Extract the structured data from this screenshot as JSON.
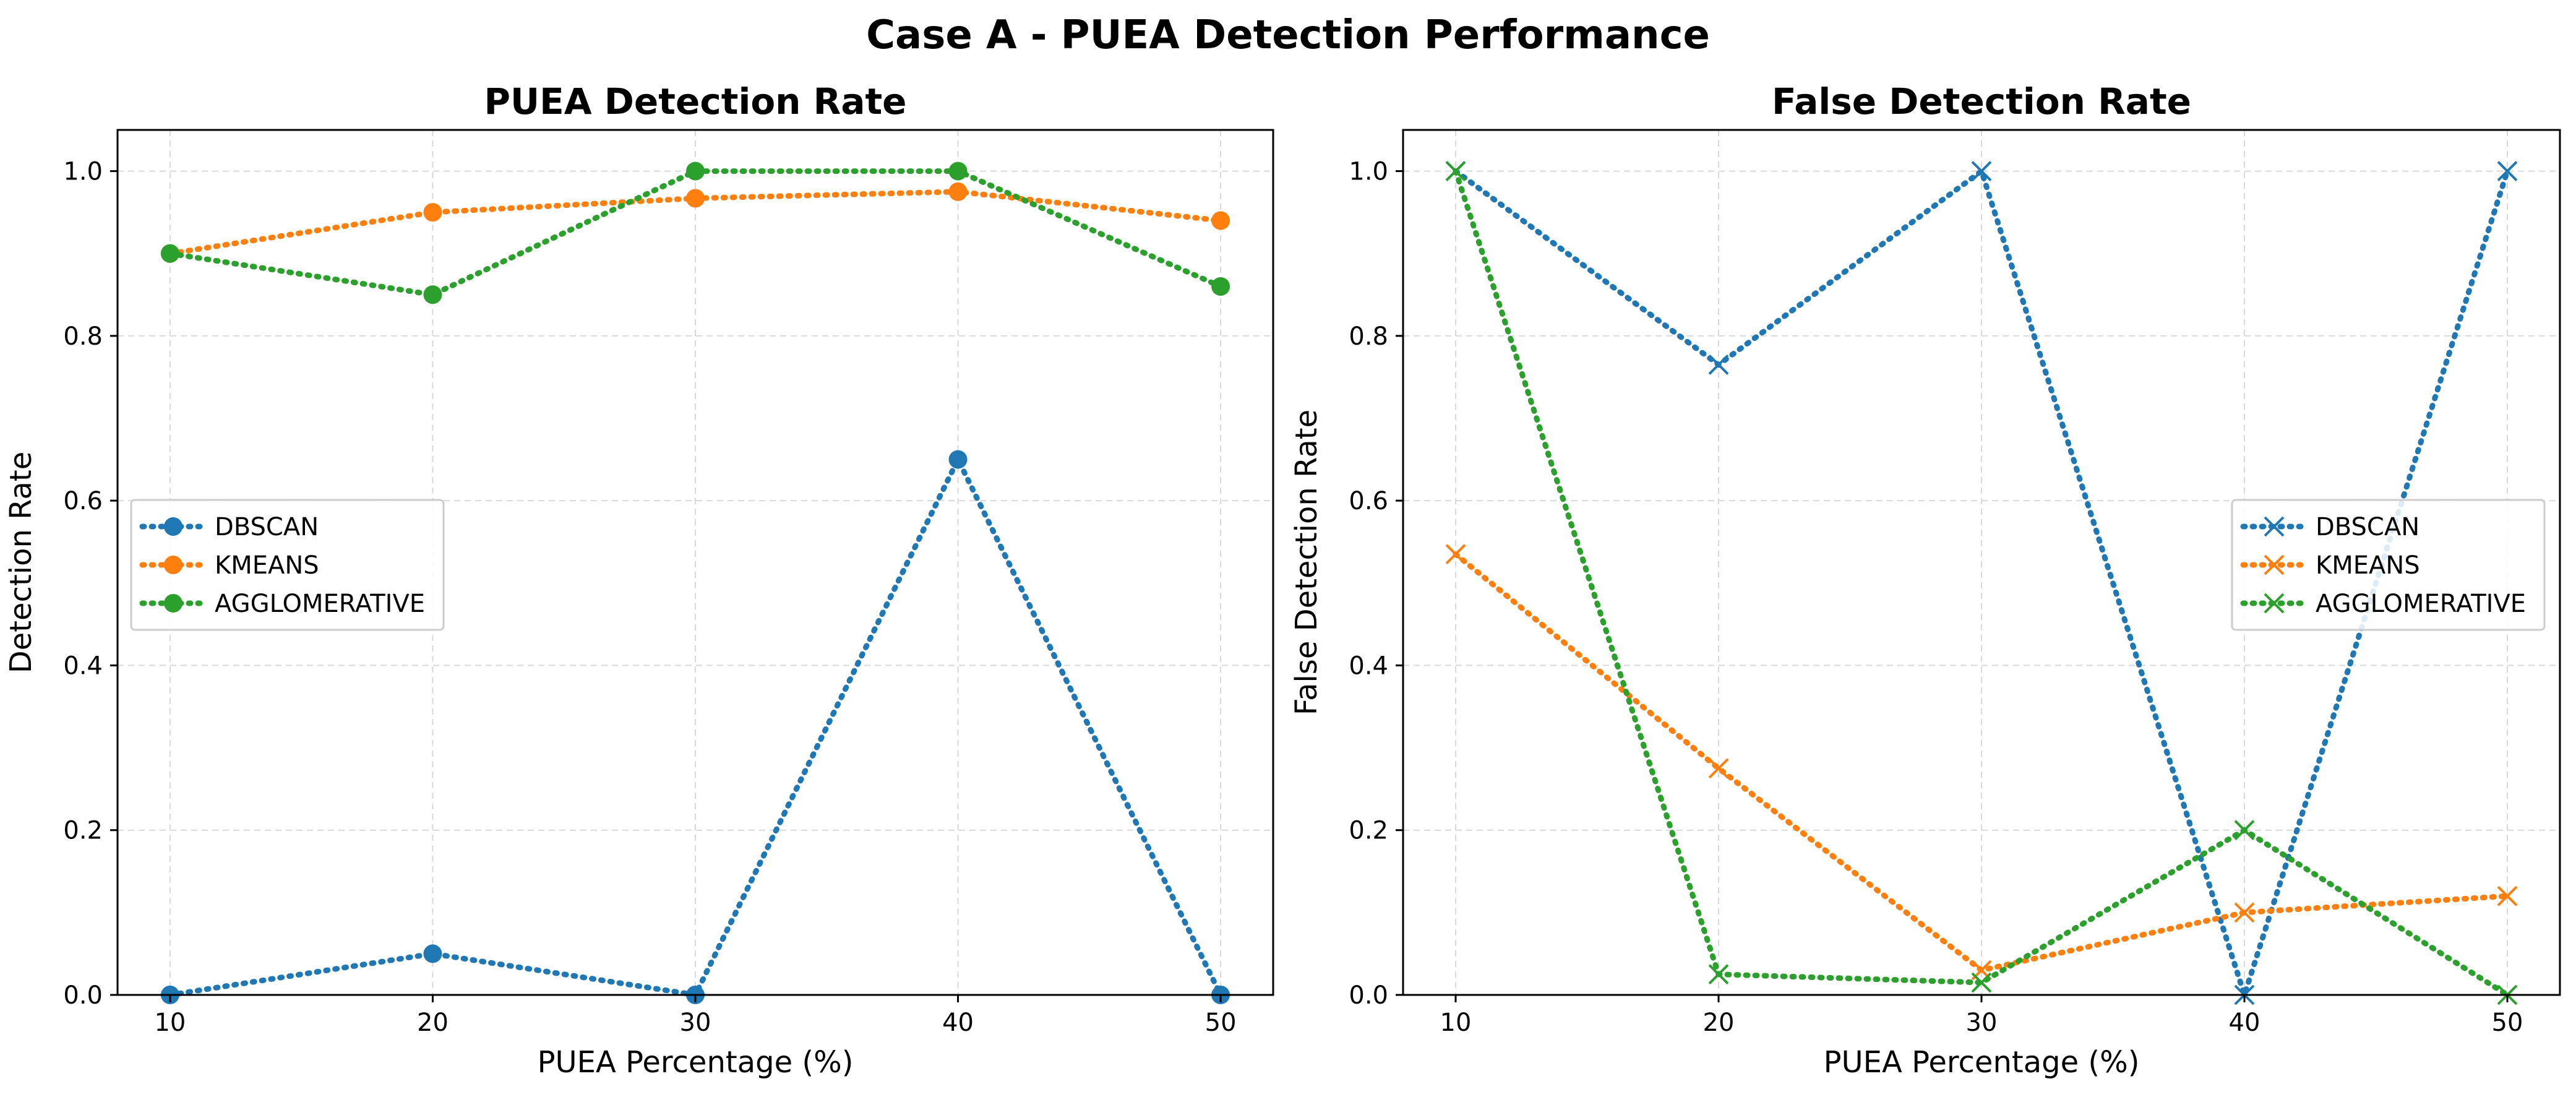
{
  "figure_title": "Case A - PUEA Detection Performance",
  "colors": {
    "DBSCAN": "#1f77b4",
    "KMEANS": "#ff7f0e",
    "AGGLOMERATIVE": "#2ca02c",
    "grid": "#d9d9d9"
  },
  "chart_data": [
    {
      "type": "line",
      "title": "PUEA Detection Rate",
      "xlabel": "PUEA Percentage (%)",
      "ylabel": "Detection Rate",
      "x": [
        10,
        20,
        30,
        40,
        50
      ],
      "xticks": [
        "10",
        "20",
        "30",
        "40",
        "50"
      ],
      "yticks": [
        "0.0",
        "0.2",
        "0.4",
        "0.6",
        "0.8",
        "1.0"
      ],
      "xlim": [
        8,
        52
      ],
      "ylim": [
        0,
        1.05
      ],
      "grid": true,
      "linestyle": "dotted",
      "marker": "circle",
      "legend_position": "center-left",
      "series": [
        {
          "name": "DBSCAN",
          "color": "#1f77b4",
          "values": [
            0.0,
            0.05,
            0.0,
            0.65,
            0.0
          ]
        },
        {
          "name": "KMEANS",
          "color": "#ff7f0e",
          "values": [
            0.9,
            0.95,
            0.967,
            0.975,
            0.94
          ]
        },
        {
          "name": "AGGLOMERATIVE",
          "color": "#2ca02c",
          "values": [
            0.9,
            0.85,
            1.0,
            1.0,
            0.86
          ]
        }
      ]
    },
    {
      "type": "line",
      "title": "False Detection Rate",
      "xlabel": "PUEA Percentage (%)",
      "ylabel": "False Detection Rate",
      "x": [
        10,
        20,
        30,
        40,
        50
      ],
      "xticks": [
        "10",
        "20",
        "30",
        "40",
        "50"
      ],
      "yticks": [
        "0.0",
        "0.2",
        "0.4",
        "0.6",
        "0.8",
        "1.0"
      ],
      "xlim": [
        8,
        52
      ],
      "ylim": [
        0,
        1.05
      ],
      "grid": true,
      "linestyle": "dotted",
      "marker": "x",
      "legend_position": "center-right",
      "series": [
        {
          "name": "DBSCAN",
          "color": "#1f77b4",
          "values": [
            1.0,
            0.765,
            1.0,
            0.0,
            1.0
          ]
        },
        {
          "name": "KMEANS",
          "color": "#ff7f0e",
          "values": [
            0.535,
            0.275,
            0.03,
            0.1,
            0.12
          ]
        },
        {
          "name": "AGGLOMERATIVE",
          "color": "#2ca02c",
          "values": [
            1.0,
            0.025,
            0.015,
            0.2,
            0.0
          ]
        }
      ]
    }
  ]
}
